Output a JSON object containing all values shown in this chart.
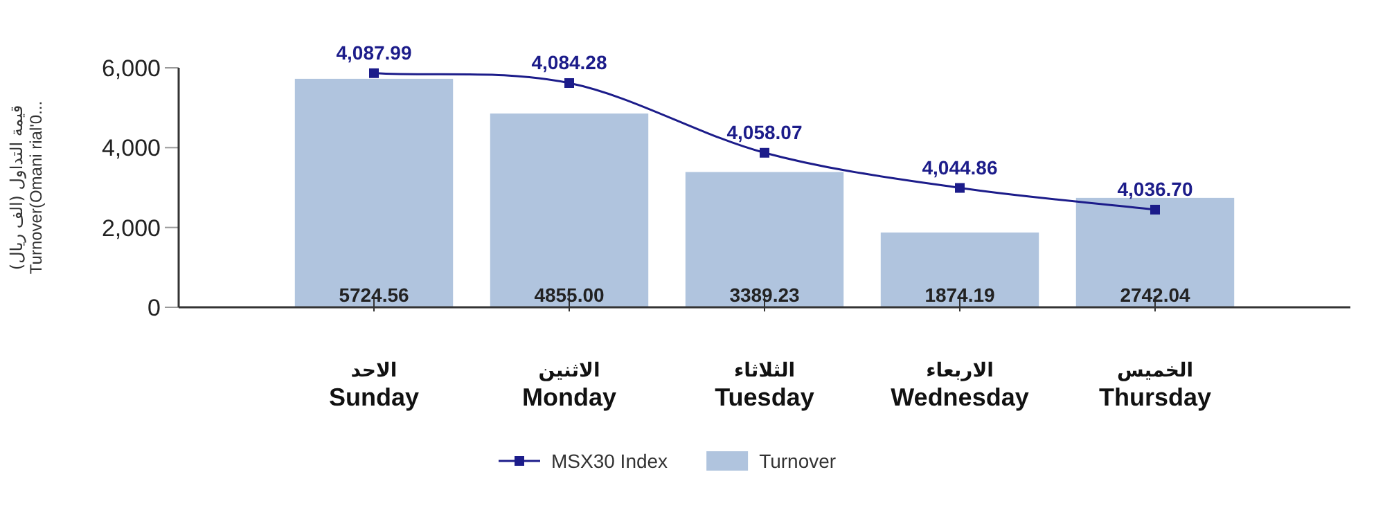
{
  "chart_data": {
    "type": "bar",
    "ylabel": "قيمة التداول (الف ريال)\nTurnover(Omani rial'0...",
    "categories": [
      "الاحد\nSunday",
      "الاثنين\nMonday",
      "الثلاثاء\nTuesday",
      "الاربعاء\nWednesday",
      "الخميس\nThursday"
    ],
    "ylim": [
      0,
      6000
    ],
    "yticks": [
      {
        "value": 0,
        "label": "0"
      },
      {
        "value": 2000,
        "label": "2,000"
      },
      {
        "value": 4000,
        "label": "4,000"
      },
      {
        "value": 6000,
        "label": "6,000"
      }
    ],
    "y2lim": [
      4000,
      4090
    ],
    "series": [
      {
        "name": "MSX30 Index",
        "type": "line",
        "axis": "y2",
        "color": "#1c1c8a",
        "marker": "square",
        "values": [
          4087.99,
          4084.28,
          4058.07,
          4044.86,
          4036.7
        ],
        "value_labels": [
          "4,087.99",
          "4,084.28",
          "4,058.07",
          "4,044.86",
          "4,036.70"
        ]
      },
      {
        "name": "Turnover",
        "color": "#b0c4de",
        "values": [
          5724.56,
          4855.0,
          3389.23,
          1874.19,
          2742.04
        ],
        "value_labels": [
          "5724.56",
          "4855.00",
          "3389.23",
          "1874.19",
          "2742.04"
        ]
      }
    ],
    "legend": "bottom"
  }
}
